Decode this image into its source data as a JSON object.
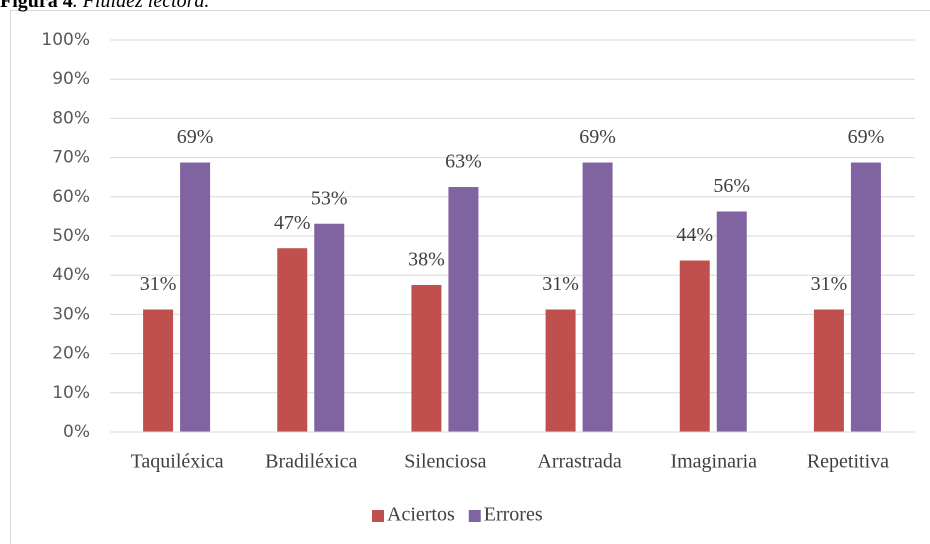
{
  "chart_data": {
    "type": "bar",
    "title": "Figura 4",
    "subtitle": ". Fluidez lectora.",
    "categories": [
      "Taquiléxica",
      "Bradiléxica",
      "Silenciosa",
      "Arrastrada",
      "Imaginaria",
      "Repetitiva"
    ],
    "series": [
      {
        "name": "Aciertos",
        "color": "#c0504d",
        "values": [
          31.25,
          46.88,
          37.5,
          31.25,
          43.75,
          31.25
        ],
        "value_labels": [
          "31%",
          "47%",
          "38%",
          "31%",
          "44%",
          "31%"
        ]
      },
      {
        "name": "Errores",
        "color": "#8064a2",
        "values": [
          68.75,
          53.13,
          62.5,
          68.75,
          56.25,
          68.75
        ],
        "value_labels": [
          "69%",
          "53%",
          "63%",
          "69%",
          "56%",
          "69%"
        ]
      }
    ],
    "ylim": [
      0,
      100
    ],
    "yticks": [
      {
        "value": 0,
        "label": "0%"
      },
      {
        "value": 10,
        "label": "10%"
      },
      {
        "value": 20,
        "label": "20%"
      },
      {
        "value": 30,
        "label": "30%"
      },
      {
        "value": 40,
        "label": "40%"
      },
      {
        "value": 50,
        "label": "50%"
      },
      {
        "value": 60,
        "label": "60%"
      },
      {
        "value": 70,
        "label": "70%"
      },
      {
        "value": 80,
        "label": "80%"
      },
      {
        "value": 90,
        "label": "90%"
      },
      {
        "value": 100,
        "label": "100%"
      }
    ],
    "grid": true,
    "legend": "bottom"
  }
}
